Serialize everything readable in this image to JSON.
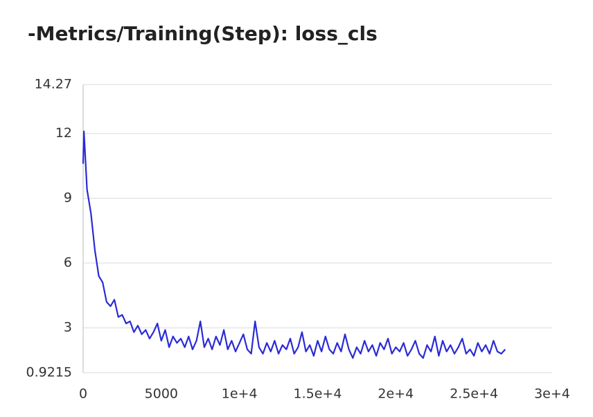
{
  "chart_data": {
    "type": "line",
    "title": "-Metrics/Training(Step): loss_cls",
    "color": "#2a2ad6",
    "grid": true,
    "xlim": [
      0,
      30000
    ],
    "xticks": [
      0,
      5000,
      {
        "value": 10000,
        "label": "1e+4"
      },
      {
        "value": 15000,
        "label": "1.5e+4"
      },
      {
        "value": 20000,
        "label": "2e+4"
      },
      {
        "value": 25000,
        "label": "2.5e+4"
      },
      {
        "value": 30000,
        "label": "3e+4"
      }
    ],
    "ylim": [
      0.9215,
      14.27
    ],
    "yticks": [
      0.9215,
      3,
      6,
      9,
      12,
      14.27
    ],
    "x": [
      0,
      50,
      250,
      500,
      750,
      1000,
      1250,
      1500,
      1750,
      2000,
      2250,
      2500,
      2750,
      3000,
      3250,
      3500,
      3750,
      4000,
      4250,
      4500,
      4750,
      5000,
      5250,
      5500,
      5750,
      6000,
      6250,
      6500,
      6750,
      7000,
      7250,
      7500,
      7750,
      8000,
      8250,
      8500,
      8750,
      9000,
      9250,
      9500,
      9750,
      10000,
      10250,
      10500,
      10750,
      11000,
      11250,
      11500,
      11750,
      12000,
      12250,
      12500,
      12750,
      13000,
      13250,
      13500,
      13750,
      14000,
      14250,
      14500,
      14750,
      15000,
      15250,
      15500,
      15750,
      16000,
      16250,
      16500,
      16750,
      17000,
      17250,
      17500,
      17750,
      18000,
      18250,
      18500,
      18750,
      19000,
      19250,
      19500,
      19750,
      20000,
      20250,
      20500,
      20750,
      21000,
      21250,
      21500,
      21750,
      22000,
      22250,
      22500,
      22750,
      23000,
      23250,
      23500,
      23750,
      24000,
      24250,
      24500,
      24750,
      25000,
      25250,
      25500,
      25750,
      26000,
      26250,
      26500,
      26750,
      27000
    ],
    "values": [
      10.6,
      12.1,
      9.4,
      8.3,
      6.6,
      5.4,
      5.1,
      4.2,
      4.0,
      4.3,
      3.5,
      3.6,
      3.2,
      3.3,
      2.8,
      3.1,
      2.7,
      2.9,
      2.5,
      2.8,
      3.2,
      2.4,
      2.9,
      2.1,
      2.6,
      2.3,
      2.5,
      2.1,
      2.6,
      2.0,
      2.4,
      3.3,
      2.1,
      2.5,
      2.0,
      2.6,
      2.2,
      2.9,
      2.0,
      2.4,
      1.9,
      2.3,
      2.7,
      2.0,
      1.8,
      3.3,
      2.1,
      1.8,
      2.3,
      1.9,
      2.4,
      1.8,
      2.2,
      2.0,
      2.5,
      1.8,
      2.1,
      2.8,
      1.9,
      2.2,
      1.7,
      2.4,
      1.9,
      2.6,
      2.0,
      1.8,
      2.3,
      1.9,
      2.7,
      2.0,
      1.6,
      2.1,
      1.8,
      2.4,
      1.9,
      2.2,
      1.7,
      2.3,
      2.0,
      2.5,
      1.8,
      2.1,
      1.9,
      2.3,
      1.7,
      2.0,
      2.4,
      1.8,
      1.6,
      2.2,
      1.9,
      2.6,
      1.7,
      2.4,
      1.9,
      2.2,
      1.8,
      2.1,
      2.5,
      1.8,
      2.0,
      1.7,
      2.3,
      1.9,
      2.2,
      1.8,
      2.4,
      1.9,
      1.8,
      2.0
    ]
  }
}
